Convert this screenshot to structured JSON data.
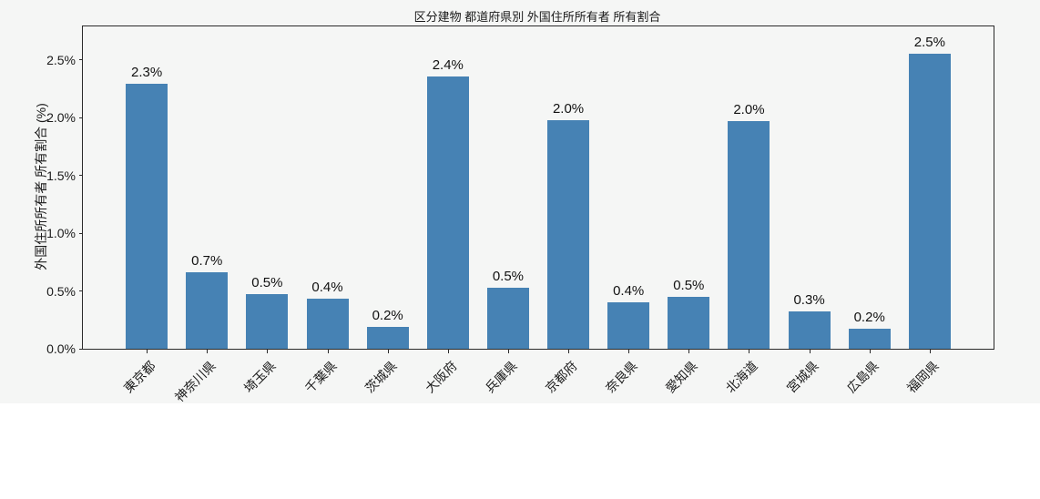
{
  "figure": {
    "background_color": "#f5f6f5",
    "text_color": "#1a1a1a"
  },
  "chart_data": {
    "type": "bar",
    "title": "区分建物 都道府県別 外国住所所有者 所有割合",
    "xlabel": "",
    "ylabel": "外国住所所有者 所有割合 (%)",
    "categories": [
      "東京都",
      "神奈川県",
      "埼玉県",
      "千葉県",
      "茨城県",
      "大阪府",
      "兵庫県",
      "京都府",
      "奈良県",
      "愛知県",
      "北海道",
      "宮城県",
      "広島県",
      "福岡県"
    ],
    "values": [
      2.29,
      0.66,
      0.47,
      0.43,
      0.19,
      2.36,
      0.53,
      1.98,
      0.4,
      0.45,
      1.97,
      0.32,
      0.17,
      2.55
    ],
    "bar_labels": [
      "2.3%",
      "0.7%",
      "0.5%",
      "0.4%",
      "0.2%",
      "2.4%",
      "0.5%",
      "2.0%",
      "0.4%",
      "0.5%",
      "2.0%",
      "0.3%",
      "0.2%",
      "2.5%"
    ],
    "ytick_values": [
      0.0,
      0.5,
      1.0,
      1.5,
      2.0,
      2.5
    ],
    "ytick_labels": [
      "0.0%",
      "0.5%",
      "1.0%",
      "1.5%",
      "2.0%",
      "2.5%"
    ],
    "ylim": [
      0,
      2.79
    ],
    "grid": false,
    "legend": null,
    "bar_color": "#4682b4"
  }
}
